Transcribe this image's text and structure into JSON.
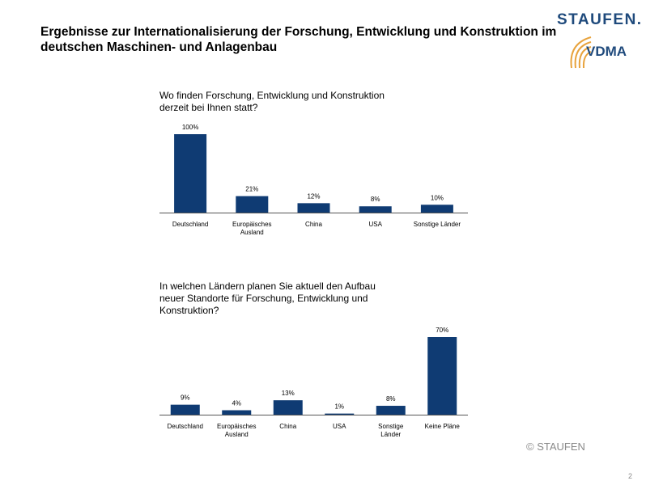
{
  "header": {
    "title_line1": "Ergebnisse zur Internationalisierung der Forschung, Entwicklung und Konstruktion im",
    "title_line2": "deutschen Maschinen- und Anlagenbau"
  },
  "logo": {
    "staufen": "STAUFEN.",
    "vdma": "VDMA",
    "colors": {
      "text": "#1f4a7c",
      "arc": "#e8a33d"
    }
  },
  "colors": {
    "bar": "#0f3b73",
    "axis": "#555555"
  },
  "chart_data": [
    {
      "type": "bar",
      "title_lines": [
        "Wo finden Forschung, Entwicklung und Konstruktion",
        "derzeit bei Ihnen statt?"
      ],
      "categories": [
        [
          "Deutschland"
        ],
        [
          "Europäisches",
          "Ausland"
        ],
        [
          "China"
        ],
        [
          "USA"
        ],
        [
          "Sonstige Länder"
        ]
      ],
      "values": [
        100,
        21,
        12,
        8,
        10
      ],
      "value_labels": [
        "100%",
        "21%",
        "12%",
        "8%",
        "10%"
      ],
      "ylim": [
        0,
        100
      ]
    },
    {
      "type": "bar",
      "title_lines": [
        "In welchen Ländern planen Sie aktuell den Aufbau",
        "neuer Standorte für Forschung, Entwicklung und",
        "Konstruktion?"
      ],
      "categories": [
        [
          "Deutschland"
        ],
        [
          "Europäisches",
          "Ausland"
        ],
        [
          "China"
        ],
        [
          "USA"
        ],
        [
          "Sonstige",
          "Länder"
        ],
        [
          "Keine Pläne"
        ]
      ],
      "values": [
        9,
        4,
        13,
        1,
        8,
        70
      ],
      "value_labels": [
        "9%",
        "4%",
        "13%",
        "1%",
        "8%",
        "70%"
      ],
      "ylim": [
        0,
        70
      ]
    }
  ],
  "footer": {
    "copyright": "© STAUFEN",
    "page_number": "2"
  }
}
